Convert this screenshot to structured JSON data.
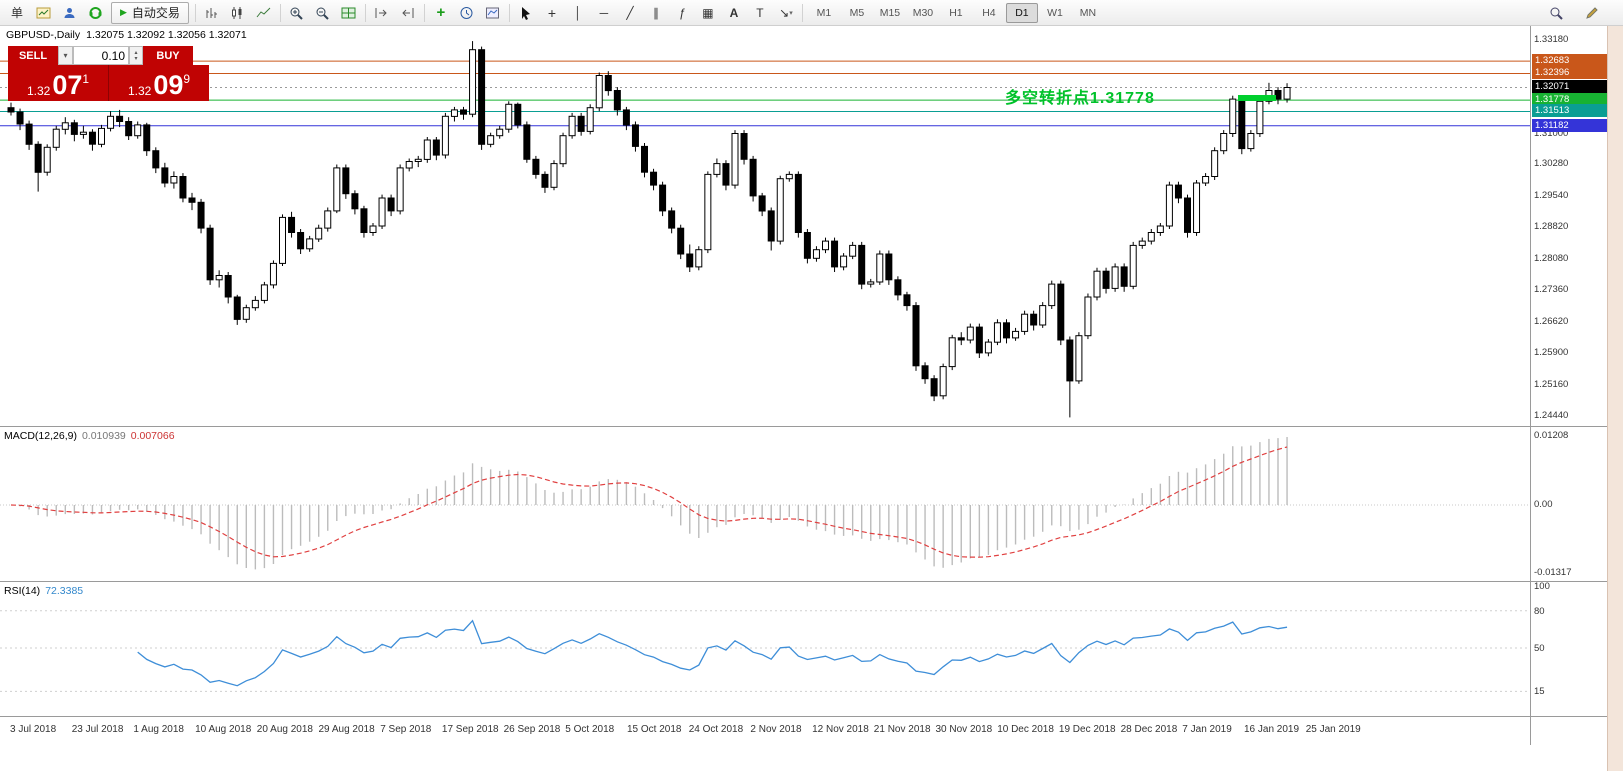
{
  "toolbar": {
    "new_order_label": "单",
    "auto_trading_label": "自动交易",
    "timeframes": [
      "M1",
      "M5",
      "M15",
      "M30",
      "H1",
      "H4",
      "D1",
      "W1",
      "MN"
    ],
    "active_timeframe": "D1"
  },
  "icons": {
    "play": "▶",
    "dropdown": "▾",
    "spin_up": "▴",
    "spin_down": "▾",
    "crosshair": "+",
    "vline": "│",
    "hline": "─",
    "trendline": "╱",
    "channel_tool": "∥",
    "fibonacci": "ƒ",
    "grid_tool": "▦",
    "text_tool": "A",
    "label_tool": "T",
    "arrows_tool": "↘",
    "indicator_plus": "+"
  },
  "trade_panel": {
    "sell_label": "SELL",
    "buy_label": "BUY",
    "volume": "0.10",
    "bid_main": "1.32",
    "bid_big": "07",
    "bid_sup": "1",
    "ask_main": "1.32",
    "ask_big": "09",
    "ask_sup": "9"
  },
  "chart_data": {
    "type": "candlestick",
    "title": "GBPUSD-,Daily",
    "ohlc_display": "1.32075 1.32092 1.32056 1.32071",
    "ylim": [
      1.242,
      1.335
    ],
    "annotation": {
      "text": "多空转折点1.31778",
      "color": "#00c22a"
    },
    "price_ticks": [
      "1.33180",
      "1.31000",
      "1.30280",
      "1.29540",
      "1.28820",
      "1.28080",
      "1.27360",
      "1.26620",
      "1.25900",
      "1.25160",
      "1.24440"
    ],
    "levels": [
      {
        "price": "1.32683",
        "value": 1.32683,
        "color": "#c9571a"
      },
      {
        "price": "1.32396",
        "value": 1.32396,
        "color": "#c9571a"
      },
      {
        "price": "1.32071",
        "value": 1.32071,
        "color": "#000000",
        "line_color": "#9a9a9a",
        "style": "dotted"
      },
      {
        "price": "1.31778",
        "value": 1.31778,
        "color": "#17b232"
      },
      {
        "price": "1.31513",
        "value": 1.31513,
        "color": "#0a9e93"
      },
      {
        "price": "1.31182",
        "value": 1.31182,
        "color": "#3434d8"
      }
    ],
    "x_labels": [
      "3 Jul 2018",
      "23 Jul 2018",
      "1 Aug 2018",
      "10 Aug 2018",
      "20 Aug 2018",
      "29 Aug 2018",
      "7 Sep 2018",
      "17 Sep 2018",
      "26 Sep 2018",
      "5 Oct 2018",
      "15 Oct 2018",
      "24 Oct 2018",
      "2 Nov 2018",
      "12 Nov 2018",
      "21 Nov 2018",
      "30 Nov 2018",
      "10 Dec 2018",
      "19 Dec 2018",
      "28 Dec 2018",
      "7 Jan 2019",
      "16 Jan 2019",
      "25 Jan 2019"
    ],
    "indicators": [
      {
        "type": "macd",
        "label": "MACD(12,26,9)",
        "values": [
          "0.010939",
          "0.007066"
        ],
        "params": [
          12,
          26,
          9
        ],
        "axis_ticks": [
          "0.01208",
          "0.00",
          "-0.01317"
        ]
      },
      {
        "type": "rsi",
        "label": "RSI(14)",
        "values": [
          "72.3385"
        ],
        "period": 14,
        "levels": [
          80,
          50,
          15
        ],
        "axis_ticks": [
          "100",
          "80",
          "50",
          "15"
        ]
      }
    ],
    "candles": [
      [
        1.316,
        1.3172,
        1.3142,
        1.315
      ],
      [
        1.315,
        1.3158,
        1.3108,
        1.3122
      ],
      [
        1.3122,
        1.313,
        1.3062,
        1.3075
      ],
      [
        1.3075,
        1.3082,
        1.2965,
        1.301
      ],
      [
        1.301,
        1.3075,
        1.3002,
        1.3068
      ],
      [
        1.3068,
        1.3118,
        1.306,
        1.311
      ],
      [
        1.311,
        1.3138,
        1.3098,
        1.3125
      ],
      [
        1.3125,
        1.3132,
        1.3082,
        1.3098
      ],
      [
        1.3098,
        1.3118,
        1.3088,
        1.3103
      ],
      [
        1.3103,
        1.311,
        1.306,
        1.3075
      ],
      [
        1.3075,
        1.312,
        1.3068,
        1.3112
      ],
      [
        1.3112,
        1.3152,
        1.3105,
        1.314
      ],
      [
        1.314,
        1.3155,
        1.3115,
        1.3128
      ],
      [
        1.3128,
        1.3138,
        1.3085,
        1.3095
      ],
      [
        1.3095,
        1.3128,
        1.3088,
        1.312
      ],
      [
        1.312,
        1.3125,
        1.3048,
        1.306
      ],
      [
        1.306,
        1.3068,
        1.3008,
        1.302
      ],
      [
        1.302,
        1.3032,
        1.2975,
        1.2985
      ],
      [
        1.2985,
        1.3012,
        1.2972,
        1.3
      ],
      [
        1.3,
        1.3008,
        1.294,
        1.295
      ],
      [
        1.295,
        1.2962,
        1.2922,
        1.294
      ],
      [
        1.294,
        1.2948,
        1.2868,
        1.288
      ],
      [
        1.288,
        1.2888,
        1.2748,
        1.276
      ],
      [
        1.276,
        1.2782,
        1.2742,
        1.277
      ],
      [
        1.277,
        1.2778,
        1.2705,
        1.272
      ],
      [
        1.272,
        1.2725,
        1.2655,
        1.2668
      ],
      [
        1.2668,
        1.2702,
        1.266,
        1.2695
      ],
      [
        1.2695,
        1.2722,
        1.2688,
        1.2712
      ],
      [
        1.2712,
        1.2755,
        1.2705,
        1.2748
      ],
      [
        1.2748,
        1.2805,
        1.274,
        1.2798
      ],
      [
        1.2798,
        1.2912,
        1.2792,
        1.2905
      ],
      [
        1.2905,
        1.2918,
        1.2858,
        1.287
      ],
      [
        1.287,
        1.2878,
        1.282,
        1.2832
      ],
      [
        1.2832,
        1.2862,
        1.2825,
        1.2855
      ],
      [
        1.2855,
        1.2888,
        1.2848,
        1.288
      ],
      [
        1.288,
        1.2928,
        1.2872,
        1.292
      ],
      [
        1.292,
        1.3028,
        1.2915,
        1.302
      ],
      [
        1.302,
        1.3028,
        1.2948,
        1.296
      ],
      [
        1.296,
        1.2968,
        1.2912,
        1.2925
      ],
      [
        1.2925,
        1.2932,
        1.2858,
        1.287
      ],
      [
        1.287,
        1.2892,
        1.2862,
        1.2885
      ],
      [
        1.2885,
        1.2958,
        1.2878,
        1.295
      ],
      [
        1.295,
        1.2958,
        1.2908,
        1.292
      ],
      [
        1.292,
        1.3028,
        1.2912,
        1.302
      ],
      [
        1.302,
        1.3042,
        1.3012,
        1.3035
      ],
      [
        1.3035,
        1.3048,
        1.3022,
        1.304
      ],
      [
        1.304,
        1.3092,
        1.3032,
        1.3085
      ],
      [
        1.3085,
        1.3092,
        1.3038,
        1.305
      ],
      [
        1.305,
        1.3148,
        1.3042,
        1.314
      ],
      [
        1.314,
        1.3162,
        1.3128,
        1.3155
      ],
      [
        1.3155,
        1.3162,
        1.3132,
        1.3145
      ],
      [
        1.3145,
        1.3315,
        1.3138,
        1.3295
      ],
      [
        1.3295,
        1.3302,
        1.3062,
        1.3075
      ],
      [
        1.3075,
        1.3102,
        1.3068,
        1.3095
      ],
      [
        1.3095,
        1.3118,
        1.3088,
        1.311
      ],
      [
        1.311,
        1.3175,
        1.3102,
        1.3168
      ],
      [
        1.3168,
        1.3172,
        1.3112,
        1.312
      ],
      [
        1.312,
        1.3128,
        1.3032,
        1.304
      ],
      [
        1.304,
        1.3048,
        1.2995,
        1.3005
      ],
      [
        1.3005,
        1.3012,
        1.2962,
        1.2975
      ],
      [
        1.2975,
        1.3038,
        1.2968,
        1.303
      ],
      [
        1.303,
        1.3102,
        1.3022,
        1.3095
      ],
      [
        1.3095,
        1.3148,
        1.3088,
        1.314
      ],
      [
        1.314,
        1.3148,
        1.3095,
        1.3105
      ],
      [
        1.3105,
        1.3168,
        1.3098,
        1.316
      ],
      [
        1.316,
        1.3242,
        1.3152,
        1.3235
      ],
      [
        1.3235,
        1.3245,
        1.3188,
        1.32
      ],
      [
        1.32,
        1.3208,
        1.3142,
        1.3155
      ],
      [
        1.3155,
        1.3162,
        1.3108,
        1.312
      ],
      [
        1.312,
        1.3128,
        1.3058,
        1.307
      ],
      [
        1.307,
        1.3078,
        1.2998,
        1.301
      ],
      [
        1.301,
        1.3018,
        1.2968,
        1.298
      ],
      [
        1.298,
        1.2988,
        1.2908,
        1.292
      ],
      [
        1.292,
        1.2928,
        1.2868,
        1.288
      ],
      [
        1.288,
        1.2888,
        1.2808,
        1.282
      ],
      [
        1.282,
        1.2842,
        1.2778,
        1.279
      ],
      [
        1.279,
        1.2838,
        1.2782,
        1.283
      ],
      [
        1.283,
        1.3012,
        1.2822,
        1.3005
      ],
      [
        1.3005,
        1.3042,
        1.2998,
        1.303
      ],
      [
        1.303,
        1.3038,
        1.2968,
        1.298
      ],
      [
        1.298,
        1.3108,
        1.2972,
        1.31
      ],
      [
        1.31,
        1.3108,
        1.3028,
        1.304
      ],
      [
        1.304,
        1.3048,
        1.2942,
        1.2955
      ],
      [
        1.2955,
        1.2962,
        1.2908,
        1.292
      ],
      [
        1.292,
        1.2928,
        1.2828,
        1.285
      ],
      [
        1.285,
        1.3002,
        1.2842,
        1.2995
      ],
      [
        1.2995,
        1.3012,
        1.2988,
        1.3005
      ],
      [
        1.3005,
        1.3012,
        1.2858,
        1.287
      ],
      [
        1.287,
        1.2878,
        1.2798,
        1.281
      ],
      [
        1.281,
        1.2838,
        1.2802,
        1.283
      ],
      [
        1.283,
        1.2858,
        1.2822,
        1.285
      ],
      [
        1.285,
        1.2858,
        1.2778,
        1.279
      ],
      [
        1.279,
        1.2822,
        1.2782,
        1.2815
      ],
      [
        1.2815,
        1.2848,
        1.2808,
        1.284
      ],
      [
        1.284,
        1.2848,
        1.2738,
        1.275
      ],
      [
        1.275,
        1.2762,
        1.2742,
        1.2755
      ],
      [
        1.2755,
        1.2828,
        1.2748,
        1.282
      ],
      [
        1.282,
        1.2828,
        1.2748,
        1.276
      ],
      [
        1.276,
        1.2768,
        1.2712,
        1.2725
      ],
      [
        1.2725,
        1.2732,
        1.2688,
        1.27
      ],
      [
        1.27,
        1.2708,
        1.2548,
        1.256
      ],
      [
        1.256,
        1.2568,
        1.2518,
        1.253
      ],
      [
        1.253,
        1.2538,
        1.2478,
        1.249
      ],
      [
        1.249,
        1.2565,
        1.2482,
        1.2558
      ],
      [
        1.2558,
        1.2632,
        1.255,
        1.2625
      ],
      [
        1.2625,
        1.2638,
        1.2608,
        1.262
      ],
      [
        1.262,
        1.2658,
        1.2612,
        1.265
      ],
      [
        1.265,
        1.2658,
        1.2578,
        1.259
      ],
      [
        1.259,
        1.2622,
        1.2582,
        1.2615
      ],
      [
        1.2615,
        1.2668,
        1.2608,
        1.266
      ],
      [
        1.266,
        1.2668,
        1.2612,
        1.2625
      ],
      [
        1.2625,
        1.2648,
        1.2618,
        1.264
      ],
      [
        1.264,
        1.2688,
        1.2632,
        1.268
      ],
      [
        1.268,
        1.2688,
        1.2642,
        1.2655
      ],
      [
        1.2655,
        1.2708,
        1.2648,
        1.27
      ],
      [
        1.27,
        1.2758,
        1.2692,
        1.275
      ],
      [
        1.275,
        1.2758,
        1.2608,
        1.262
      ],
      [
        1.262,
        1.2628,
        1.244,
        1.2525
      ],
      [
        1.2525,
        1.2638,
        1.2518,
        1.263
      ],
      [
        1.263,
        1.2728,
        1.2622,
        1.272
      ],
      [
        1.272,
        1.2788,
        1.2712,
        1.278
      ],
      [
        1.278,
        1.2788,
        1.2728,
        1.274
      ],
      [
        1.274,
        1.2798,
        1.2732,
        1.279
      ],
      [
        1.279,
        1.2798,
        1.2732,
        1.2745
      ],
      [
        1.2745,
        1.2848,
        1.2738,
        1.284
      ],
      [
        1.284,
        1.2858,
        1.2832,
        1.285
      ],
      [
        1.285,
        1.2878,
        1.2842,
        1.287
      ],
      [
        1.287,
        1.2892,
        1.2862,
        1.2885
      ],
      [
        1.2885,
        1.2988,
        1.2878,
        1.298
      ],
      [
        1.298,
        1.2988,
        1.2938,
        1.295
      ],
      [
        1.295,
        1.2958,
        1.2858,
        1.287
      ],
      [
        1.287,
        1.2992,
        1.2862,
        1.2985
      ],
      [
        1.2985,
        1.3008,
        1.2978,
        1.3
      ],
      [
        1.3,
        1.3068,
        1.2992,
        1.306
      ],
      [
        1.306,
        1.3108,
        1.3052,
        1.31
      ],
      [
        1.31,
        1.3188,
        1.3092,
        1.318
      ],
      [
        1.318,
        1.3188,
        1.3052,
        1.3065
      ],
      [
        1.3065,
        1.3108,
        1.3058,
        1.31
      ],
      [
        1.31,
        1.3182,
        1.3092,
        1.3175
      ],
      [
        1.3175,
        1.3218,
        1.3168,
        1.32
      ],
      [
        1.32,
        1.3208,
        1.3168,
        1.318
      ],
      [
        1.318,
        1.3217,
        1.3172,
        1.3207
      ]
    ]
  }
}
